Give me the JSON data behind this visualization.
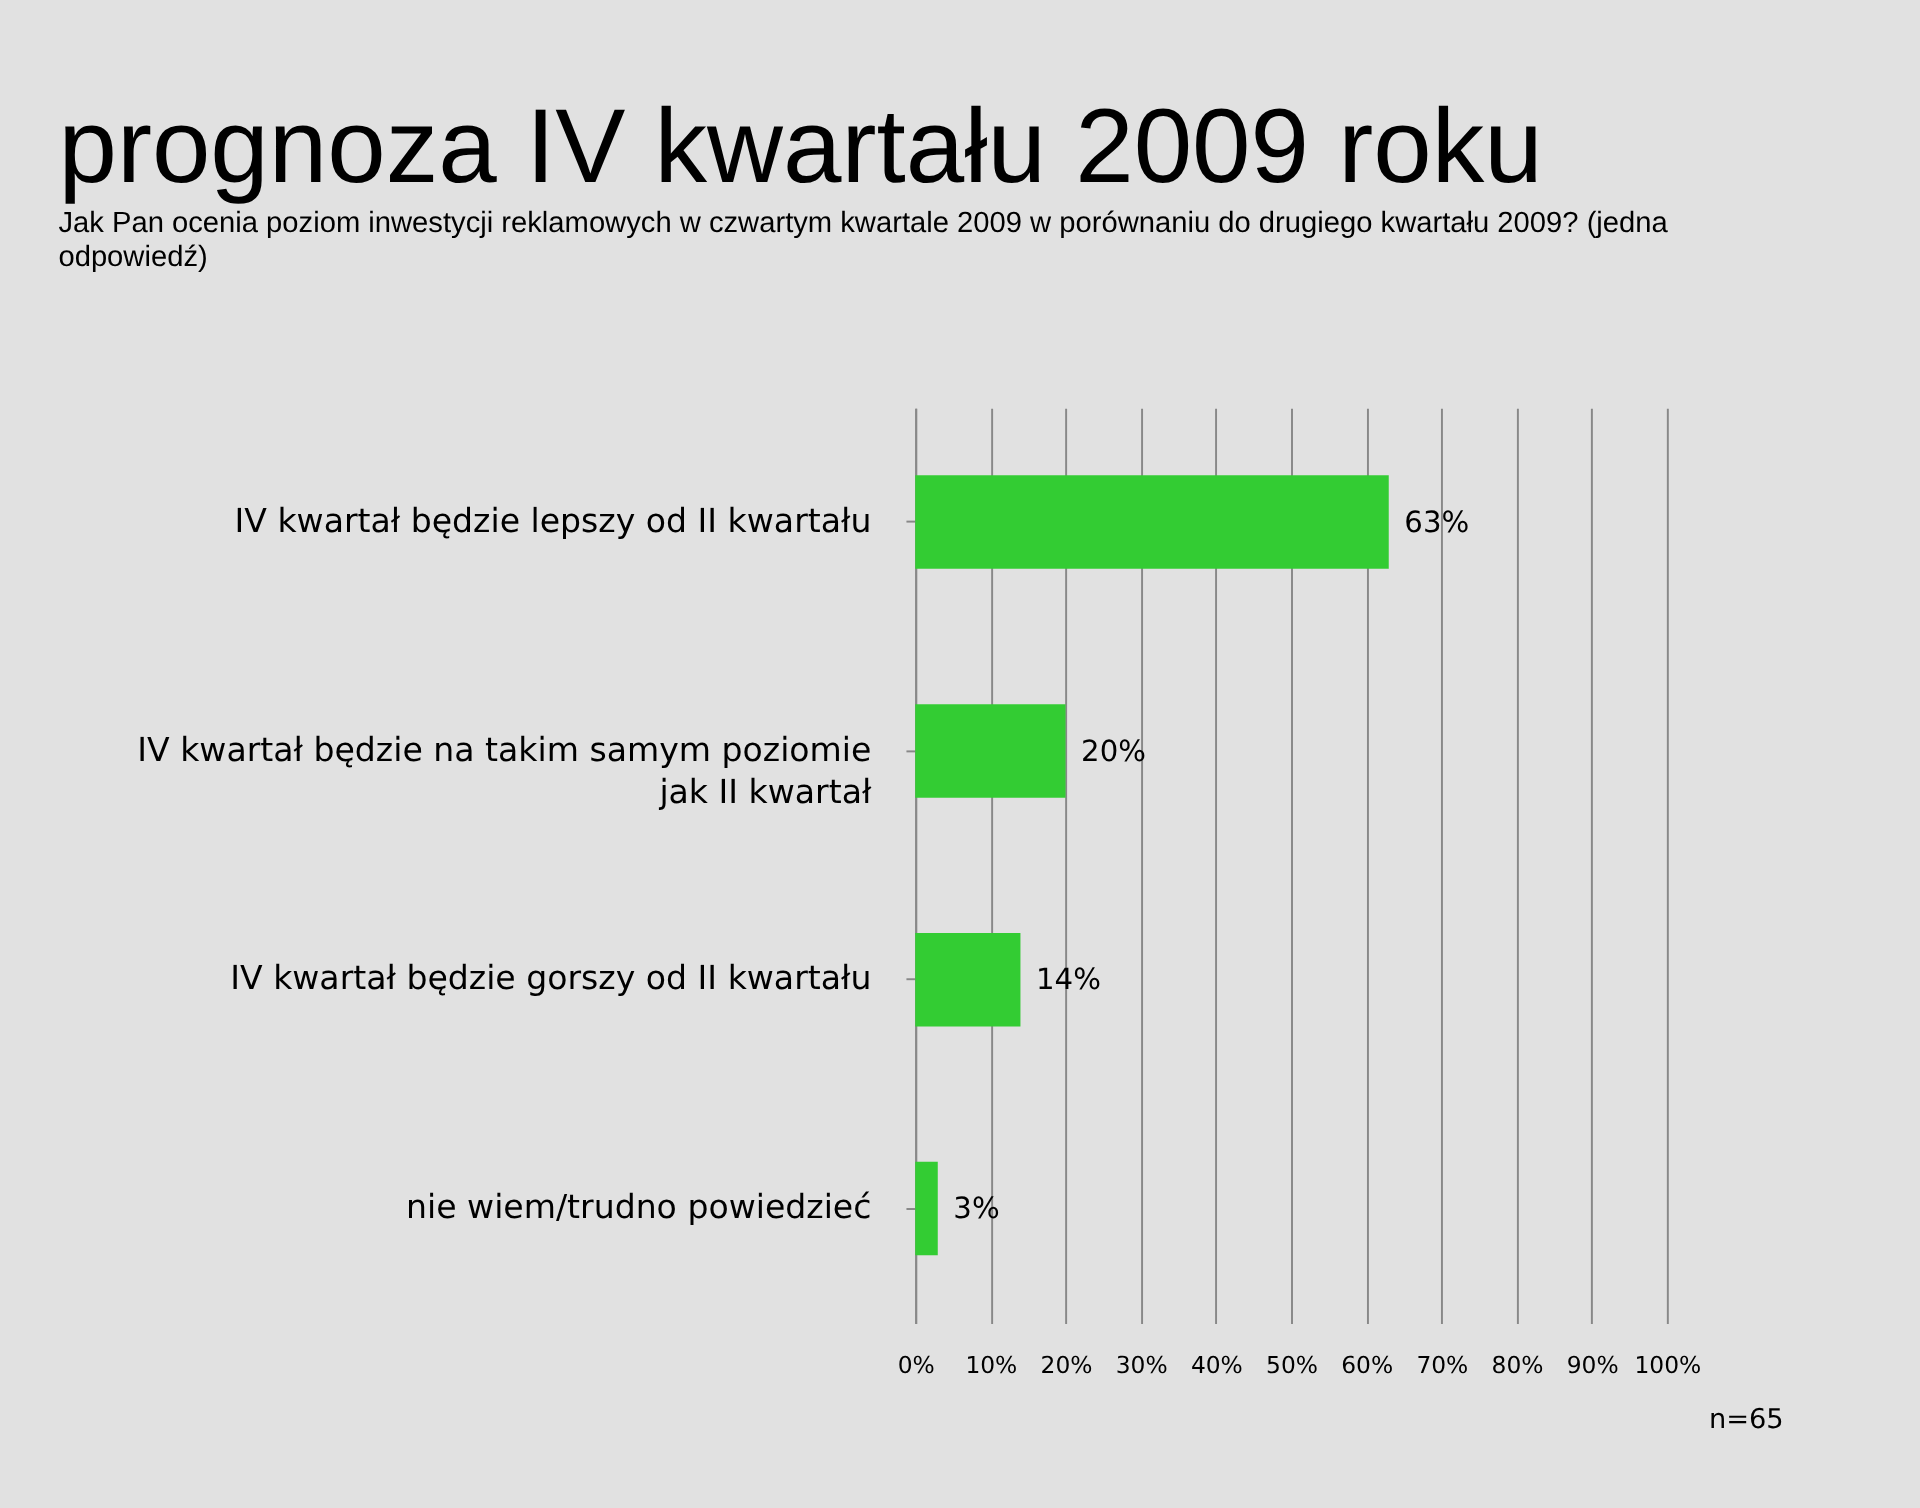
{
  "chart_data": {
    "type": "bar",
    "orientation": "horizontal",
    "title": "prognoza IV kwartału 2009 roku",
    "subtitle": "Jak Pan ocenia poziom inwestycji reklamowych w czwartym kwartale 2009 w porównaniu do drugiego kwartału 2009? (jedna odpowiedź)",
    "categories": [
      "IV kwartał będzie lepszy od II kwartału",
      "IV kwartał będzie na takim samym poziomie\njak II kwartał",
      "IV kwartał będzie gorszy od II kwartału",
      "nie wiem/trudno powiedzieć"
    ],
    "values": [
      63,
      20,
      14,
      3
    ],
    "value_labels": [
      "63%",
      "20%",
      "14%",
      "3%"
    ],
    "color": "#33cc33",
    "xlim": [
      0,
      100
    ],
    "xticks": [
      {
        "value": 0,
        "label": "0%"
      },
      {
        "value": 10,
        "label": "10%"
      },
      {
        "value": 20,
        "label": "20%"
      },
      {
        "value": 30,
        "label": "30%"
      },
      {
        "value": 40,
        "label": "40%"
      },
      {
        "value": 50,
        "label": "50%"
      },
      {
        "value": 60,
        "label": "60%"
      },
      {
        "value": 70,
        "label": "70%"
      },
      {
        "value": 80,
        "label": "80%"
      },
      {
        "value": 90,
        "label": "90%"
      },
      {
        "value": 100,
        "label": "100%"
      }
    ],
    "grid": "x",
    "annotations": [
      "n=65"
    ]
  }
}
